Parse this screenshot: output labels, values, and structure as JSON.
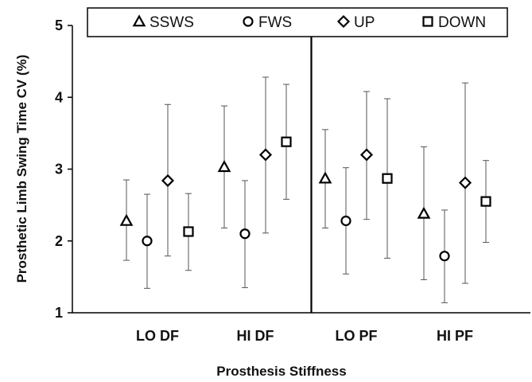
{
  "chart_data": {
    "type": "scatter",
    "categories": [
      "LO DF",
      "HI DF",
      "LO PF",
      "HI PF"
    ],
    "xlabel": "Prosthesis Stiffness",
    "ylabel": "Prosthetic Limb Swing Time CV (%)",
    "ylim": [
      1,
      5
    ],
    "yticks": [
      "1",
      "2",
      "3",
      "4",
      "5"
    ],
    "grid": false,
    "legend_position": "top",
    "series": [
      {
        "name": "SSWS",
        "marker": "triangle",
        "values": [
          2.28,
          3.03,
          2.87,
          2.38
        ],
        "err_low": [
          1.73,
          2.18,
          2.18,
          1.46
        ],
        "err_high": [
          2.85,
          3.88,
          3.55,
          3.31
        ]
      },
      {
        "name": "FWS",
        "marker": "circle",
        "values": [
          2.0,
          2.1,
          2.28,
          1.79
        ],
        "err_low": [
          1.34,
          1.35,
          1.54,
          1.14
        ],
        "err_high": [
          2.65,
          2.84,
          3.02,
          2.43
        ]
      },
      {
        "name": "UP",
        "marker": "diamond",
        "values": [
          2.84,
          3.2,
          3.2,
          2.81
        ],
        "err_low": [
          1.79,
          2.11,
          2.3,
          1.41
        ],
        "err_high": [
          3.9,
          4.28,
          4.08,
          4.2
        ]
      },
      {
        "name": "DOWN",
        "marker": "square",
        "values": [
          2.13,
          3.38,
          2.87,
          2.55
        ],
        "err_low": [
          1.59,
          2.58,
          1.76,
          1.98
        ],
        "err_high": [
          2.66,
          4.18,
          3.98,
          3.12
        ]
      }
    ],
    "divider_between": [
      "HI DF",
      "LO PF"
    ]
  }
}
